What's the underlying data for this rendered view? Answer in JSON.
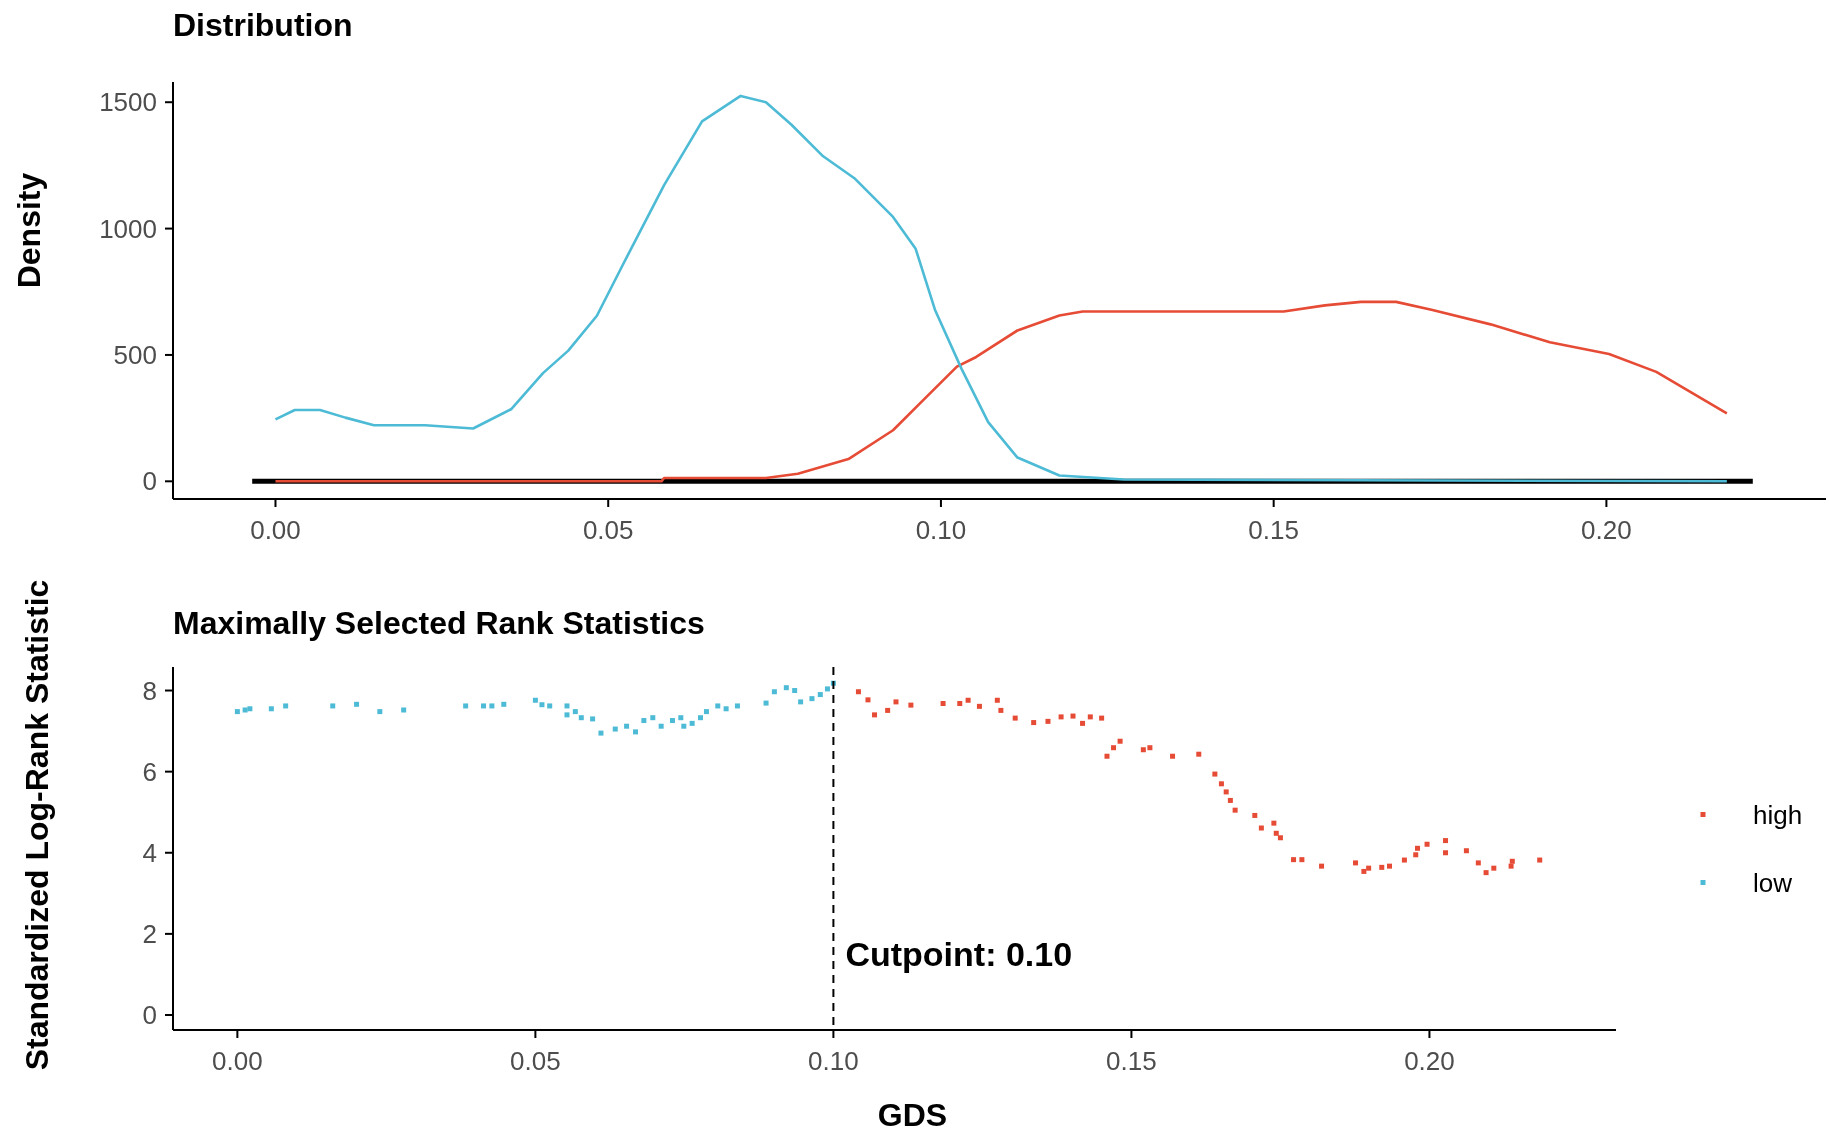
{
  "chart_data": [
    {
      "type": "line",
      "title": "Distribution",
      "ylabel": "Density",
      "xlim": [
        -0.0154,
        0.233
      ],
      "ylim": [
        -70,
        1580
      ],
      "xticks": [
        {
          "value": 0,
          "label": "0.00"
        },
        {
          "value": 0.05,
          "label": "0.05"
        },
        {
          "value": 0.1,
          "label": "0.10"
        },
        {
          "value": 0.15,
          "label": "0.15"
        },
        {
          "value": 0.2,
          "label": "0.20"
        }
      ],
      "yticks": [
        0,
        500,
        1000,
        1500
      ],
      "series": [
        {
          "color": "#000000",
          "x": [
            -0.0035,
            0.222
          ],
          "values": [
            0,
            0
          ]
        },
        {
          "color": "#e64b35",
          "x": [
            0,
            0.058,
            0.0584,
            0.0737,
            0.0785,
            0.0861,
            0.0928,
            0.0976,
            0.1024,
            0.1053,
            0.1115,
            0.1178,
            0.1213,
            0.1515,
            0.1577,
            0.1631,
            0.1684,
            0.1737,
            0.1826,
            0.1915,
            0.2004,
            0.2075,
            0.2128,
            0.2181
          ],
          "values": [
            0,
            0,
            13,
            13,
            30,
            88,
            202,
            328,
            454,
            492,
            597,
            656,
            672,
            672,
            696,
            710,
            710,
            679,
            621,
            550,
            504,
            433,
            351,
            269
          ]
        },
        {
          "color": "#4dbbd5",
          "x": [
            0,
            0.0029,
            0.0067,
            0.0105,
            0.0148,
            0.0225,
            0.0297,
            0.0354,
            0.0402,
            0.044,
            0.0483,
            0.0522,
            0.0584,
            0.0641,
            0.0699,
            0.0737,
            0.0775,
            0.0823,
            0.0871,
            0.0928,
            0.0962,
            0.0991,
            0.1031,
            0.1071,
            0.1115,
            0.1178,
            0.1275,
            0.2181
          ],
          "values": [
            245,
            282,
            282,
            252,
            222,
            222,
            209,
            285,
            428,
            517,
            655,
            857,
            1172,
            1424,
            1525,
            1500,
            1412,
            1286,
            1197,
            1046,
            920,
            679,
            445,
            234,
            94,
            23,
            7,
            0
          ]
        }
      ]
    },
    {
      "type": "scatter",
      "title": "Maximally Selected Rank Statistics",
      "xlabel": "GDS",
      "ylabel": "Standardized Log-Rank Statistic",
      "xlim": [
        -0.0108,
        0.2313
      ],
      "ylim": [
        -0.37,
        8.58
      ],
      "xticks": [
        {
          "value": 0,
          "label": "0.00"
        },
        {
          "value": 0.05,
          "label": "0.05"
        },
        {
          "value": 0.1,
          "label": "0.10"
        },
        {
          "value": 0.15,
          "label": "0.15"
        },
        {
          "value": 0.2,
          "label": "0.20"
        }
      ],
      "yticks": [
        0,
        2,
        4,
        6,
        8
      ],
      "marker": "square",
      "legend": "right",
      "ref_lines": [
        {
          "axis": "x",
          "value": 0.1,
          "line_style": "dashed",
          "color": "#000000"
        }
      ],
      "annotations": [
        {
          "text": "Cutpoint: 0.10",
          "x": 0.1,
          "y": 1.5
        }
      ],
      "series": [
        {
          "name": "high",
          "color": "#e64b35",
          "x": [
            0.1042,
            0.1058,
            0.1069,
            0.1091,
            0.1105,
            0.113,
            0.1184,
            0.1212,
            0.1226,
            0.1245,
            0.1275,
            0.1281,
            0.1305,
            0.1336,
            0.136,
            0.1382,
            0.1402,
            0.1418,
            0.1431,
            0.145,
            0.1459,
            0.147,
            0.1481,
            0.152,
            0.1531,
            0.1569,
            0.1613,
            0.164,
            0.1651,
            0.1659,
            0.1666,
            0.1674,
            0.1707,
            0.1718,
            0.1739,
            0.1743,
            0.175,
            0.1772,
            0.1786,
            0.1819,
            0.1876,
            0.189,
            0.1898,
            0.192,
            0.1933,
            0.1958,
            0.1977,
            0.198,
            0.1996,
            0.2027,
            0.2027,
            0.2062,
            0.2082,
            0.2095,
            0.2108,
            0.2137,
            0.2139,
            0.2185
          ],
          "values": [
            7.97,
            7.77,
            7.4,
            7.51,
            7.72,
            7.64,
            7.68,
            7.68,
            7.76,
            7.61,
            7.76,
            7.51,
            7.32,
            7.21,
            7.24,
            7.35,
            7.37,
            7.19,
            7.35,
            7.32,
            6.38,
            6.59,
            6.75,
            6.54,
            6.59,
            6.38,
            6.43,
            5.94,
            5.7,
            5.5,
            5.29,
            5.05,
            4.92,
            4.61,
            4.73,
            4.48,
            4.37,
            3.83,
            3.83,
            3.67,
            3.75,
            3.54,
            3.62,
            3.64,
            3.67,
            3.82,
            3.95,
            4.11,
            4.21,
            4.3,
            4.0,
            4.05,
            3.75,
            3.51,
            3.62,
            3.67,
            3.79,
            3.82
          ]
        },
        {
          "name": "low",
          "color": "#4dbbd5",
          "x": [
            0,
            0.0013,
            0.0021,
            0.0057,
            0.0081,
            0.016,
            0.02,
            0.0239,
            0.0279,
            0.0383,
            0.0413,
            0.0427,
            0.0447,
            0.05,
            0.0511,
            0.0524,
            0.0553,
            0.0553,
            0.0567,
            0.0577,
            0.0596,
            0.061,
            0.0634,
            0.0653,
            0.0668,
            0.0682,
            0.0697,
            0.0711,
            0.073,
            0.0744,
            0.0749,
            0.0763,
            0.0777,
            0.0787,
            0.0806,
            0.082,
            0.0839,
            0.0887,
            0.0901,
            0.0921,
            0.0935,
            0.0945,
            0.0964,
            0.0978,
            0.099,
            0.1
          ],
          "values": [
            7.48,
            7.52,
            7.55,
            7.55,
            7.62,
            7.62,
            7.66,
            7.48,
            7.52,
            7.62,
            7.62,
            7.62,
            7.66,
            7.76,
            7.65,
            7.62,
            7.62,
            7.4,
            7.48,
            7.33,
            7.3,
            6.95,
            7.05,
            7.12,
            6.98,
            7.26,
            7.33,
            7.12,
            7.26,
            7.33,
            7.12,
            7.19,
            7.33,
            7.48,
            7.62,
            7.55,
            7.62,
            7.69,
            7.97,
            8.07,
            8.0,
            7.72,
            7.8,
            7.9,
            8.04,
            8.18
          ]
        }
      ]
    }
  ]
}
